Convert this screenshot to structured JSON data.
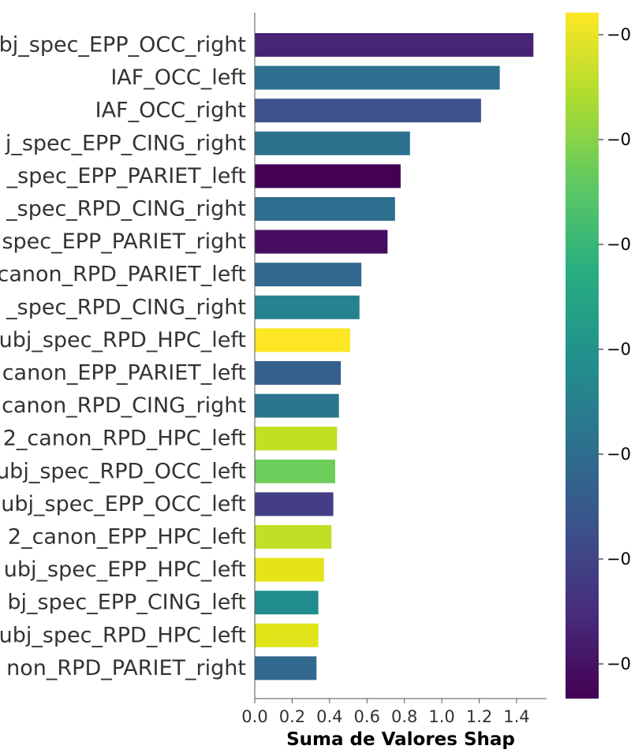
{
  "chart_data": {
    "type": "bar",
    "orientation": "horizontal",
    "title": "",
    "xlabel": "Suma de Valores Shap",
    "ylabel": "",
    "xlim": [
      0,
      1.55
    ],
    "xticks": [
      "0.0",
      "0.2",
      "0.4",
      "0.6",
      "0.8",
      "1.0",
      "1.2",
      "1.4"
    ],
    "grid": false,
    "legend": "none",
    "colorbar": {
      "colormap": "viridis",
      "tick_labels": [
        "−0",
        "−0",
        "−0",
        "−0",
        "−0",
        "−0",
        "−0"
      ]
    },
    "categories": [
      "bj_spec_EPP_OCC_right",
      "IAF_OCC_left",
      "IAF_OCC_right",
      "j_spec_EPP_CING_right",
      "_spec_EPP_PARIET_left",
      "_spec_RPD_CING_right",
      "spec_EPP_PARIET_right",
      "canon_RPD_PARIET_left",
      "_spec_RPD_CING_right",
      "ubj_spec_RPD_HPC_left",
      "canon_EPP_PARIET_left",
      "canon_RPD_CING_right",
      "2_canon_RPD_HPC_left",
      "ubj_spec_RPD_OCC_left",
      "ubj_spec_EPP_OCC_left",
      "2_canon_EPP_HPC_left",
      "ubj_spec_EPP_HPC_left",
      "bj_spec_EPP_CING_left",
      "ubj_spec_RPD_HPC_left",
      "non_RPD_PARIET_right"
    ],
    "values": [
      1.49,
      1.31,
      1.21,
      0.83,
      0.78,
      0.75,
      0.71,
      0.57,
      0.56,
      0.51,
      0.46,
      0.45,
      0.44,
      0.43,
      0.42,
      0.41,
      0.37,
      0.34,
      0.34,
      0.33
    ],
    "colors": [
      "#482475",
      "#2d6f8e",
      "#3b528b",
      "#2c718e",
      "#440154",
      "#2e6e8e",
      "#470d60",
      "#31688e",
      "#26828e",
      "#fde725",
      "#355f8d",
      "#2b758e",
      "#c2df23",
      "#6ccd5a",
      "#433e85",
      "#c0df25",
      "#e5e419",
      "#228d8d",
      "#dfe318",
      "#31688e"
    ]
  }
}
